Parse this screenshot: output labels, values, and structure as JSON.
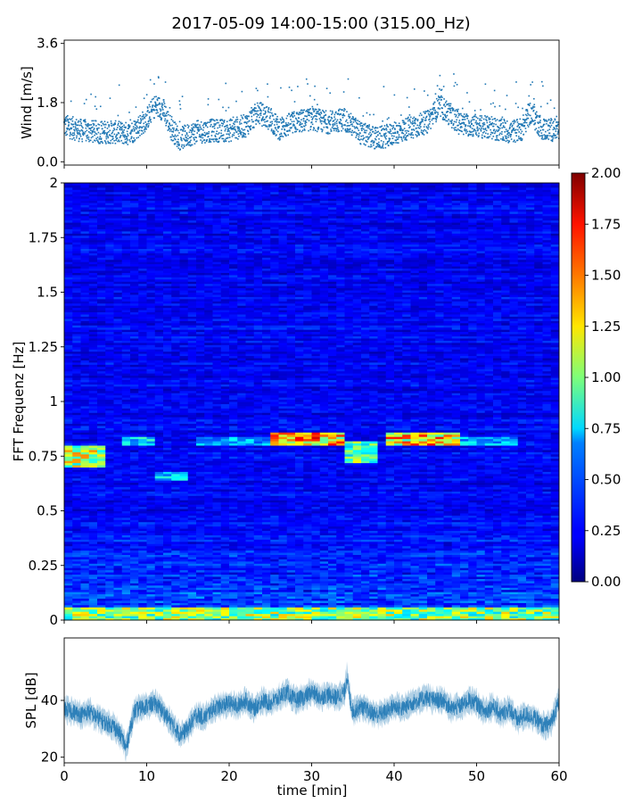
{
  "title": "2017-05-09 14:00-15:00 (315.00_Hz)",
  "chart_data": [
    {
      "name": "wind",
      "type": "scatter",
      "ylabel": "Wind [m/s]",
      "xlim": [
        0,
        60
      ],
      "ylim": [
        -0.1,
        3.7
      ],
      "yticks": [
        0.0,
        1.8,
        3.6
      ],
      "ytick_labels": [
        "0.0",
        "1.8",
        "3.6"
      ],
      "color": "#1f77b4",
      "baseline_profile": {
        "x": [
          0,
          2,
          4,
          6,
          8,
          10,
          11,
          12,
          13,
          14,
          16,
          18,
          20,
          22,
          23.5,
          25,
          26,
          28,
          30,
          32,
          33,
          34,
          36,
          38,
          40,
          42,
          44,
          45.5,
          46.5,
          48,
          50,
          52,
          54,
          55.5,
          56.5,
          58,
          60
        ],
        "y": [
          1.1,
          0.95,
          0.9,
          0.9,
          0.85,
          1.3,
          1.7,
          1.6,
          1.0,
          0.7,
          0.9,
          0.95,
          0.95,
          1.1,
          1.5,
          1.3,
          1.0,
          1.2,
          1.3,
          1.2,
          1.25,
          1.3,
          0.85,
          0.7,
          0.85,
          1.05,
          1.2,
          1.7,
          1.5,
          1.15,
          1.1,
          1.0,
          0.9,
          1.0,
          1.5,
          1.0,
          0.95
        ],
        "spread": 0.35
      }
    },
    {
      "name": "spectrogram",
      "type": "heatmap",
      "ylabel": "FFT Frequenz [Hz]",
      "xlim": [
        0,
        60
      ],
      "ylim": [
        0,
        2
      ],
      "yticks": [
        0,
        0.25,
        0.5,
        0.75,
        1,
        1.25,
        1.5,
        1.75,
        2
      ],
      "ytick_labels": [
        "0",
        "0.25",
        "0.5",
        "0.75",
        "1",
        "1.25",
        "1.5",
        "1.75",
        "2"
      ],
      "colormap": "jet",
      "colorbar": {
        "range": [
          0,
          2
        ],
        "ticks": [
          "0.00",
          "0.25",
          "0.50",
          "0.75",
          "1.00",
          "1.25",
          "1.50",
          "1.75",
          "2.00"
        ]
      },
      "background_level": 0.2,
      "features": [
        {
          "label": "low-frequency band",
          "freq": [
            0,
            0.06
          ],
          "time": [
            0,
            60
          ],
          "level": 1.2
        },
        {
          "label": "ridge",
          "freq": [
            0.7,
            0.8
          ],
          "time": [
            0,
            5
          ],
          "level": 1.3
        },
        {
          "label": "ridge",
          "freq": [
            0.8,
            0.84
          ],
          "time": [
            7,
            11
          ],
          "level": 0.8
        },
        {
          "label": "ridge",
          "freq": [
            0.64,
            0.68
          ],
          "time": [
            11,
            15
          ],
          "level": 0.75
        },
        {
          "label": "ridge",
          "freq": [
            0.8,
            0.84
          ],
          "time": [
            16,
            25
          ],
          "level": 0.7
        },
        {
          "label": "ridge",
          "freq": [
            0.8,
            0.86
          ],
          "time": [
            25,
            34
          ],
          "level": 1.6
        },
        {
          "label": "ridge",
          "freq": [
            0.72,
            0.82
          ],
          "time": [
            34,
            38
          ],
          "level": 1.1
        },
        {
          "label": "ridge",
          "freq": [
            0.8,
            0.86
          ],
          "time": [
            39,
            48
          ],
          "level": 1.5
        },
        {
          "label": "ridge",
          "freq": [
            0.8,
            0.84
          ],
          "time": [
            48,
            55
          ],
          "level": 0.7
        }
      ]
    },
    {
      "name": "spl",
      "type": "line",
      "xlabel": "time [min]",
      "ylabel": "SPL [dB]",
      "xlim": [
        0,
        60
      ],
      "ylim": [
        18,
        62
      ],
      "xticks": [
        0,
        10,
        20,
        30,
        40,
        50,
        60
      ],
      "xtick_labels": [
        "0",
        "10",
        "20",
        "30",
        "40",
        "50",
        "60"
      ],
      "yticks": [
        20,
        40
      ],
      "ytick_labels": [
        "20",
        "40"
      ],
      "color": "#1f77b4",
      "profile": {
        "x": [
          0,
          1,
          2,
          3,
          4,
          5,
          6,
          7,
          7.5,
          8,
          8.5,
          9,
          10,
          11,
          12,
          13,
          14,
          15,
          16,
          17,
          18,
          19,
          20,
          21,
          22,
          23,
          24,
          25,
          26,
          27,
          28,
          29,
          30,
          31,
          32,
          33,
          34,
          34.3,
          34.6,
          35,
          36,
          37,
          38,
          39,
          40,
          41,
          42,
          43,
          44,
          45,
          46,
          47,
          48,
          49,
          50,
          51,
          52,
          53,
          54,
          55,
          56,
          57,
          58,
          59,
          60
        ],
        "y": [
          37,
          36,
          35,
          36,
          34,
          32,
          31,
          27,
          23,
          30,
          36,
          37,
          38,
          39,
          36,
          32,
          28,
          30,
          35,
          34,
          37,
          38,
          39,
          38,
          40,
          37,
          40,
          39,
          41,
          43,
          40,
          41,
          43,
          41,
          42,
          41,
          43,
          49,
          41,
          36,
          38,
          36,
          35,
          36,
          38,
          37,
          39,
          40,
          41,
          40,
          40,
          37,
          38,
          40,
          39,
          36,
          38,
          35,
          37,
          33,
          35,
          34,
          31,
          32,
          40
        ]
      },
      "band_width": 4
    }
  ]
}
